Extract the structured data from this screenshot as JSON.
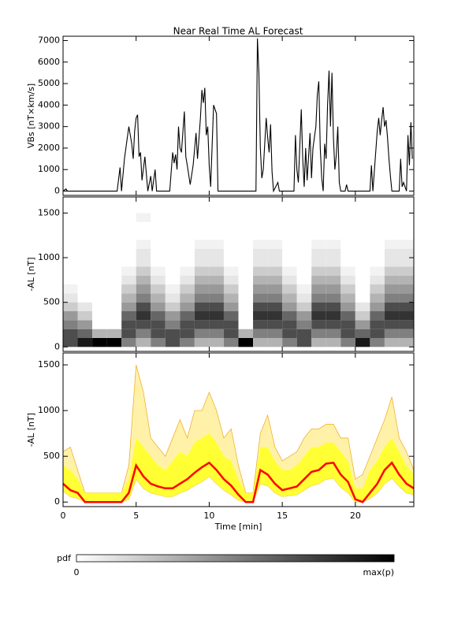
{
  "chart_data": [
    {
      "type": "line",
      "title": "Near Real Time AL Forecast",
      "ylabel": "VBs [nT×km/s]",
      "color": "#000000",
      "xlim": [
        0,
        24
      ],
      "xticks": [
        0,
        5,
        10,
        15,
        20
      ],
      "ylim": [
        -200,
        7200
      ],
      "yticks": [
        0,
        1000,
        2000,
        3000,
        4000,
        5000,
        6000,
        7000
      ],
      "x": [
        0,
        0.2,
        0.3,
        3.7,
        3.9,
        4.0,
        4.2,
        4.5,
        4.6,
        4.7,
        4.8,
        4.9,
        5.0,
        5.1,
        5.2,
        5.3,
        5.4,
        5.6,
        5.8,
        6.0,
        6.1,
        6.3,
        6.4,
        7.3,
        7.5,
        7.6,
        7.7,
        7.8,
        7.9,
        8.0,
        8.1,
        8.3,
        8.4,
        8.5,
        8.7,
        8.9,
        9.1,
        9.2,
        9.4,
        9.5,
        9.6,
        9.7,
        9.8,
        9.9,
        10.0,
        10.1,
        10.3,
        10.5,
        10.6,
        13.2,
        13.3,
        13.4,
        13.5,
        13.6,
        13.7,
        13.9,
        14.0,
        14.1,
        14.2,
        14.3,
        14.4,
        14.7,
        14.8,
        15.8,
        15.9,
        16.0,
        16.1,
        16.3,
        16.4,
        16.5,
        16.6,
        16.7,
        16.9,
        17.0,
        17.1,
        17.3,
        17.4,
        17.5,
        17.6,
        17.7,
        17.8,
        17.9,
        18.0,
        18.1,
        18.2,
        18.3,
        18.4,
        18.5,
        18.6,
        18.7,
        18.8,
        18.9,
        19.0,
        19.3,
        19.4,
        19.5,
        21.0,
        21.1,
        21.2,
        21.5,
        21.6,
        21.7,
        21.8,
        21.9,
        22.0,
        22.1,
        22.2,
        22.3,
        22.4,
        22.5,
        23.0,
        23.1,
        23.2,
        23.3,
        23.5,
        23.6,
        23.7,
        23.8,
        23.9
      ],
      "values": [
        0,
        100,
        0,
        0,
        1100,
        0,
        1500,
        3000,
        2600,
        2200,
        1500,
        2800,
        3400,
        3550,
        1600,
        1800,
        500,
        1600,
        0,
        700,
        0,
        1000,
        0,
        0,
        1800,
        1300,
        1700,
        1000,
        3000,
        2000,
        1800,
        3700,
        1600,
        1200,
        300,
        1200,
        2700,
        1500,
        3400,
        4700,
        4100,
        4800,
        2600,
        3000,
        1200,
        200,
        4000,
        3600,
        0,
        0,
        7100,
        5500,
        2000,
        600,
        1000,
        3400,
        2500,
        1800,
        3100,
        900,
        0,
        400,
        0,
        0,
        2600,
        1000,
        400,
        3800,
        1500,
        200,
        2000,
        500,
        2700,
        600,
        2000,
        3000,
        4500,
        5100,
        2000,
        600,
        0,
        2200,
        1500,
        4000,
        5600,
        3000,
        5500,
        2500,
        1000,
        1700,
        3000,
        400,
        0,
        0,
        300,
        0,
        0,
        1200,
        0,
        2800,
        3400,
        2600,
        3300,
        3900,
        3000,
        3300,
        2500,
        1500,
        700,
        0,
        0,
        1500,
        200,
        400,
        0,
        2600,
        1200,
        3200,
        1500
      ]
    },
    {
      "type": "heatmap",
      "ylabel": "-AL [nT]",
      "xlim": [
        0,
        24
      ],
      "xticks": [
        0,
        5,
        10,
        15,
        20
      ],
      "ylim": [
        -50,
        1680
      ],
      "yticks": [
        0,
        500,
        1000,
        1500
      ],
      "xbins": [
        0,
        1,
        2,
        3,
        4,
        5,
        6,
        7,
        8,
        9,
        10,
        11,
        12,
        13,
        14,
        15,
        16,
        17,
        18,
        19,
        20,
        21,
        22,
        23,
        24
      ],
      "ybins": [
        0,
        100,
        200,
        300,
        400,
        500,
        600,
        700,
        800,
        900,
        1000,
        1100,
        1200,
        1300,
        1400,
        1500,
        1600
      ],
      "z": [
        [
          0.7,
          0.9,
          1,
          1,
          0.5,
          0.3,
          0.5,
          0.7,
          0.5,
          0.3,
          0.3,
          0.5,
          1,
          0.3,
          0.3,
          0.5,
          0.7,
          0.3,
          0.3,
          0.5,
          0.9,
          0.5,
          0.3,
          0.3
        ],
        [
          0.7,
          0.6,
          0.3,
          0.3,
          0.7,
          0.5,
          0.7,
          0.7,
          0.7,
          0.5,
          0.5,
          0.7,
          0.3,
          0.5,
          0.5,
          0.7,
          0.7,
          0.5,
          0.5,
          0.7,
          0.6,
          0.7,
          0.5,
          0.5
        ],
        [
          0.5,
          0.4,
          0,
          0,
          0.7,
          0.7,
          0.7,
          0.5,
          0.7,
          0.7,
          0.7,
          0.7,
          0,
          0.7,
          0.7,
          0.7,
          0.5,
          0.7,
          0.7,
          0.7,
          0.4,
          0.7,
          0.7,
          0.7
        ],
        [
          0.4,
          0.2,
          0,
          0,
          0.6,
          0.8,
          0.6,
          0.4,
          0.6,
          0.8,
          0.8,
          0.6,
          0,
          0.8,
          0.8,
          0.6,
          0.4,
          0.8,
          0.8,
          0.6,
          0.2,
          0.6,
          0.8,
          0.8
        ],
        [
          0.2,
          0.1,
          0,
          0,
          0.4,
          0.7,
          0.4,
          0.2,
          0.4,
          0.7,
          0.7,
          0.4,
          0,
          0.7,
          0.7,
          0.4,
          0.2,
          0.7,
          0.7,
          0.4,
          0.1,
          0.4,
          0.7,
          0.7
        ],
        [
          0.1,
          0,
          0,
          0,
          0.3,
          0.5,
          0.3,
          0.1,
          0.3,
          0.5,
          0.5,
          0.3,
          0,
          0.5,
          0.5,
          0.3,
          0.1,
          0.5,
          0.5,
          0.3,
          0,
          0.3,
          0.5,
          0.5
        ],
        [
          0.05,
          0,
          0,
          0,
          0.2,
          0.4,
          0.2,
          0.05,
          0.2,
          0.4,
          0.4,
          0.2,
          0,
          0.4,
          0.4,
          0.2,
          0.05,
          0.4,
          0.4,
          0.2,
          0,
          0.2,
          0.4,
          0.4
        ],
        [
          0,
          0,
          0,
          0,
          0.1,
          0.3,
          0.1,
          0,
          0.1,
          0.3,
          0.3,
          0.1,
          0,
          0.3,
          0.3,
          0.1,
          0,
          0.3,
          0.3,
          0.1,
          0,
          0.1,
          0.3,
          0.3
        ],
        [
          0,
          0,
          0,
          0,
          0.05,
          0.2,
          0.05,
          0,
          0.05,
          0.2,
          0.2,
          0.05,
          0,
          0.2,
          0.2,
          0.05,
          0,
          0.2,
          0.2,
          0.05,
          0,
          0.05,
          0.2,
          0.2
        ],
        [
          0,
          0,
          0,
          0,
          0,
          0.1,
          0,
          0,
          0,
          0.1,
          0.1,
          0,
          0,
          0.1,
          0.1,
          0,
          0,
          0.1,
          0.1,
          0,
          0,
          0,
          0.1,
          0.1
        ],
        [
          0,
          0,
          0,
          0,
          0,
          0.1,
          0,
          0,
          0,
          0.1,
          0.1,
          0,
          0,
          0.1,
          0.1,
          0,
          0,
          0.1,
          0.1,
          0,
          0,
          0,
          0.1,
          0.1
        ],
        [
          0,
          0,
          0,
          0,
          0,
          0.05,
          0,
          0,
          0,
          0.05,
          0.05,
          0,
          0,
          0.05,
          0.05,
          0,
          0,
          0.05,
          0.05,
          0,
          0,
          0,
          0.05,
          0.05
        ],
        [
          0,
          0,
          0,
          0,
          0,
          0,
          0,
          0,
          0,
          0,
          0,
          0,
          0,
          0,
          0,
          0,
          0,
          0,
          0,
          0,
          0,
          0,
          0,
          0
        ],
        [
          0,
          0,
          0,
          0,
          0,
          0,
          0,
          0,
          0,
          0,
          0,
          0,
          0,
          0,
          0,
          0,
          0,
          0,
          0,
          0,
          0,
          0,
          0,
          0
        ],
        [
          0,
          0,
          0,
          0,
          0,
          0.05,
          0,
          0,
          0,
          0,
          0,
          0,
          0,
          0,
          0,
          0,
          0,
          0,
          0,
          0,
          0,
          0,
          0,
          0
        ],
        [
          0,
          0,
          0,
          0,
          0,
          0,
          0,
          0,
          0,
          0,
          0,
          0,
          0,
          0,
          0,
          0,
          0,
          0,
          0,
          0,
          0,
          0,
          0,
          0
        ]
      ],
      "colorbar": {
        "label": "pdf",
        "min_label": "0",
        "max_label": "max(p)"
      }
    },
    {
      "type": "band",
      "ylabel": "-AL [nT]",
      "xlabel": "Time [min]",
      "xlim": [
        0,
        24
      ],
      "xticks": [
        0,
        5,
        10,
        15,
        20
      ],
      "ylim": [
        -50,
        1630
      ],
      "yticks": [
        0,
        500,
        1000,
        1500
      ],
      "x": [
        0,
        0.5,
        1,
        1.5,
        2,
        2.5,
        3,
        3.5,
        4,
        4.5,
        5,
        5.5,
        6,
        6.5,
        7,
        7.5,
        8,
        8.5,
        9,
        9.5,
        10,
        10.5,
        11,
        11.5,
        12,
        12.5,
        13,
        13.5,
        14,
        14.5,
        15,
        15.5,
        16,
        16.5,
        17,
        17.5,
        18,
        18.5,
        19,
        19.5,
        20,
        20.5,
        21,
        21.5,
        22,
        22.5,
        23,
        23.5,
        24
      ],
      "outer_color": "#fff2a8",
      "outer_edge": "#f0b030",
      "inner_color": "#ffff33",
      "median_color": "#ff0000",
      "upper": [
        550,
        600,
        350,
        100,
        100,
        100,
        100,
        100,
        100,
        400,
        1500,
        1200,
        700,
        600,
        500,
        700,
        900,
        700,
        1000,
        1000,
        1200,
        1000,
        700,
        800,
        400,
        100,
        100,
        750,
        950,
        600,
        450,
        500,
        550,
        700,
        800,
        800,
        850,
        850,
        700,
        700,
        250,
        300,
        500,
        700,
        900,
        1150,
        700,
        550,
        350
      ],
      "inner_upper": [
        400,
        350,
        250,
        100,
        100,
        100,
        100,
        100,
        100,
        250,
        700,
        600,
        500,
        400,
        350,
        450,
        550,
        500,
        650,
        700,
        750,
        650,
        500,
        450,
        250,
        100,
        100,
        600,
        600,
        450,
        350,
        350,
        400,
        500,
        600,
        600,
        650,
        650,
        550,
        450,
        150,
        150,
        350,
        450,
        600,
        700,
        550,
        400,
        300
      ],
      "lower": [
        120,
        60,
        40,
        0,
        0,
        0,
        0,
        0,
        0,
        30,
        250,
        150,
        100,
        80,
        60,
        60,
        100,
        130,
        180,
        220,
        280,
        200,
        130,
        80,
        20,
        0,
        0,
        200,
        180,
        100,
        60,
        70,
        80,
        130,
        180,
        200,
        250,
        260,
        160,
        100,
        0,
        0,
        40,
        100,
        200,
        260,
        170,
        100,
        80
      ],
      "median": [
        200,
        130,
        100,
        0,
        0,
        0,
        0,
        0,
        0,
        100,
        400,
        280,
        200,
        170,
        150,
        150,
        200,
        250,
        320,
        380,
        430,
        350,
        250,
        180,
        80,
        0,
        0,
        350,
        300,
        200,
        130,
        150,
        170,
        250,
        330,
        350,
        420,
        430,
        300,
        220,
        30,
        0,
        100,
        200,
        350,
        430,
        300,
        200,
        150
      ]
    }
  ]
}
